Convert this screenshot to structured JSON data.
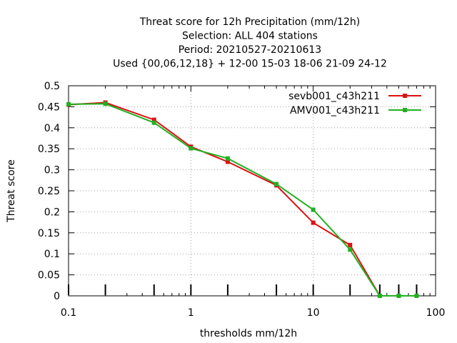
{
  "chart_data": {
    "type": "line",
    "title_lines": [
      "Threat score  for 12h Precipitation (mm/12h)",
      "Selection: ALL    404 stations",
      "Period: 20210527-20210613",
      "Used {00,06,12,18} + 12-00 15-03 18-06 21-09 24-12"
    ],
    "xlabel": "thresholds mm/12h",
    "ylabel": "Threat score",
    "x_scale": "log",
    "xlim": [
      0.1,
      100
    ],
    "ylim": [
      0,
      0.5
    ],
    "x_ticks": [
      {
        "value": 0.1,
        "label": "0.1"
      },
      {
        "value": 1,
        "label": "1"
      },
      {
        "value": 10,
        "label": "10"
      },
      {
        "value": 100,
        "label": "100"
      }
    ],
    "y_ticks": [
      {
        "value": 0,
        "label": "0"
      },
      {
        "value": 0.05,
        "label": "0.05"
      },
      {
        "value": 0.1,
        "label": "0.1"
      },
      {
        "value": 0.15,
        "label": "0.15"
      },
      {
        "value": 0.2,
        "label": "0.2"
      },
      {
        "value": 0.25,
        "label": "0.25"
      },
      {
        "value": 0.3,
        "label": "0.3"
      },
      {
        "value": 0.35,
        "label": "0.35"
      },
      {
        "value": 0.4,
        "label": "0.4"
      },
      {
        "value": 0.45,
        "label": "0.45"
      },
      {
        "value": 0.5,
        "label": "0.5"
      }
    ],
    "threshold_marks": [
      0.1,
      0.2,
      0.5,
      1,
      2,
      5,
      10,
      20,
      35,
      50,
      70
    ],
    "grid": true,
    "legend_position": "top-right",
    "series": [
      {
        "name": "sevb001_c43h211",
        "color": "#dd1111",
        "x": [
          0.1,
          0.2,
          0.5,
          1,
          2,
          5,
          10,
          20,
          35,
          50,
          70
        ],
        "y": [
          0.455,
          0.46,
          0.419,
          0.355,
          0.319,
          0.263,
          0.174,
          0.121,
          0.0,
          0.0,
          0.0
        ]
      },
      {
        "name": "AMV001_c43h211",
        "color": "#22b022",
        "x": [
          0.1,
          0.2,
          0.5,
          1,
          2,
          5,
          10,
          20,
          35,
          50,
          70
        ],
        "y": [
          0.456,
          0.457,
          0.412,
          0.351,
          0.327,
          0.266,
          0.205,
          0.11,
          0.0,
          0.0,
          0.0
        ]
      }
    ]
  }
}
